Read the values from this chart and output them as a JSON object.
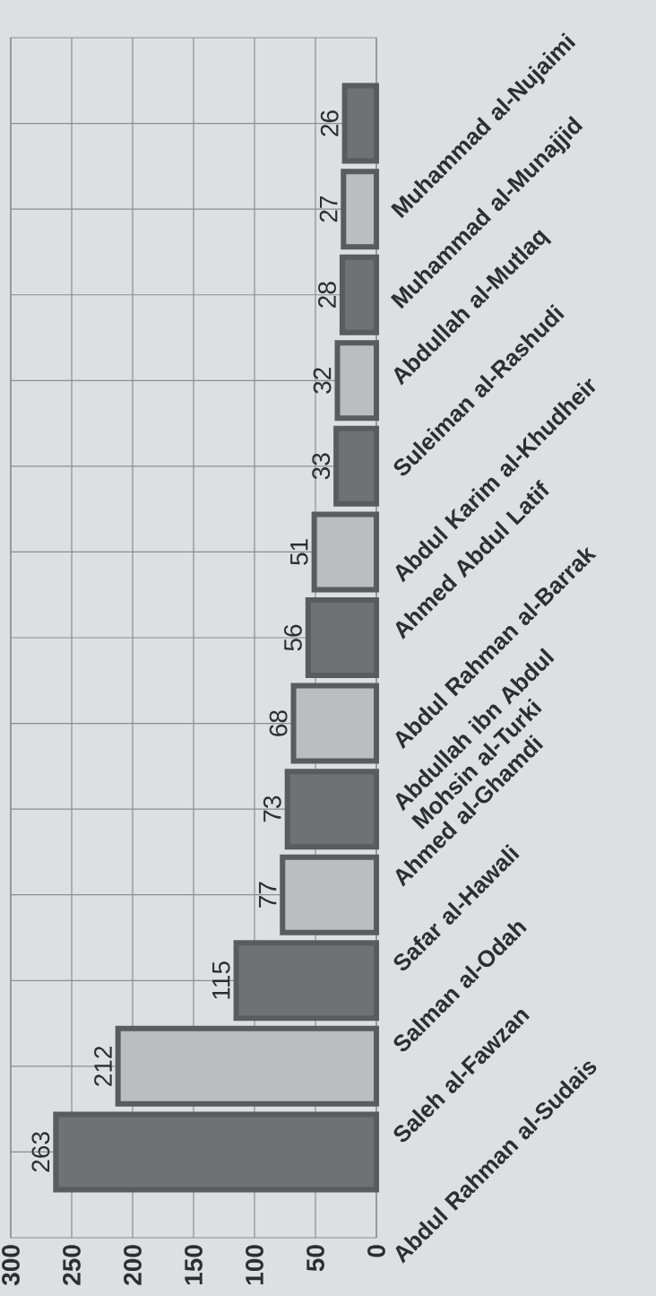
{
  "chart_data": {
    "type": "bar",
    "orientation": "horizontal",
    "categories": [
      "Muhammad al-Nujaimi",
      "Muhammad al-Munajjid",
      "Abdullah al-Mutlaq",
      "Suleiman al-Rashudi",
      "Abdul Karim al-Khudheir",
      "Ahmed Abdul Latif",
      "Abdul Rahman al-Barrak",
      "Abdullah ibn Abdul Mohsin al-Turki",
      "Ahmed al-Ghamdi",
      "Safar al-Hawali",
      "Salman al-Odah",
      "Saleh al-Fawzan",
      "Abdul Rahman al-Sudais"
    ],
    "values": [
      26,
      27,
      28,
      32,
      33,
      51,
      56,
      68,
      73,
      77,
      115,
      212,
      263
    ],
    "colors": [
      "#707174",
      "#bcbdc0",
      "#707174",
      "#bcbdc0",
      "#707174",
      "#bcbdc0",
      "#707174",
      "#bcbdc0",
      "#707174",
      "#bcbdc0",
      "#707174",
      "#bcbdc0",
      "#707174"
    ],
    "xlim": [
      300,
      0
    ],
    "xticks": [
      300,
      250,
      200,
      150,
      100,
      50,
      0
    ],
    "grid": true,
    "data_labels": true
  }
}
